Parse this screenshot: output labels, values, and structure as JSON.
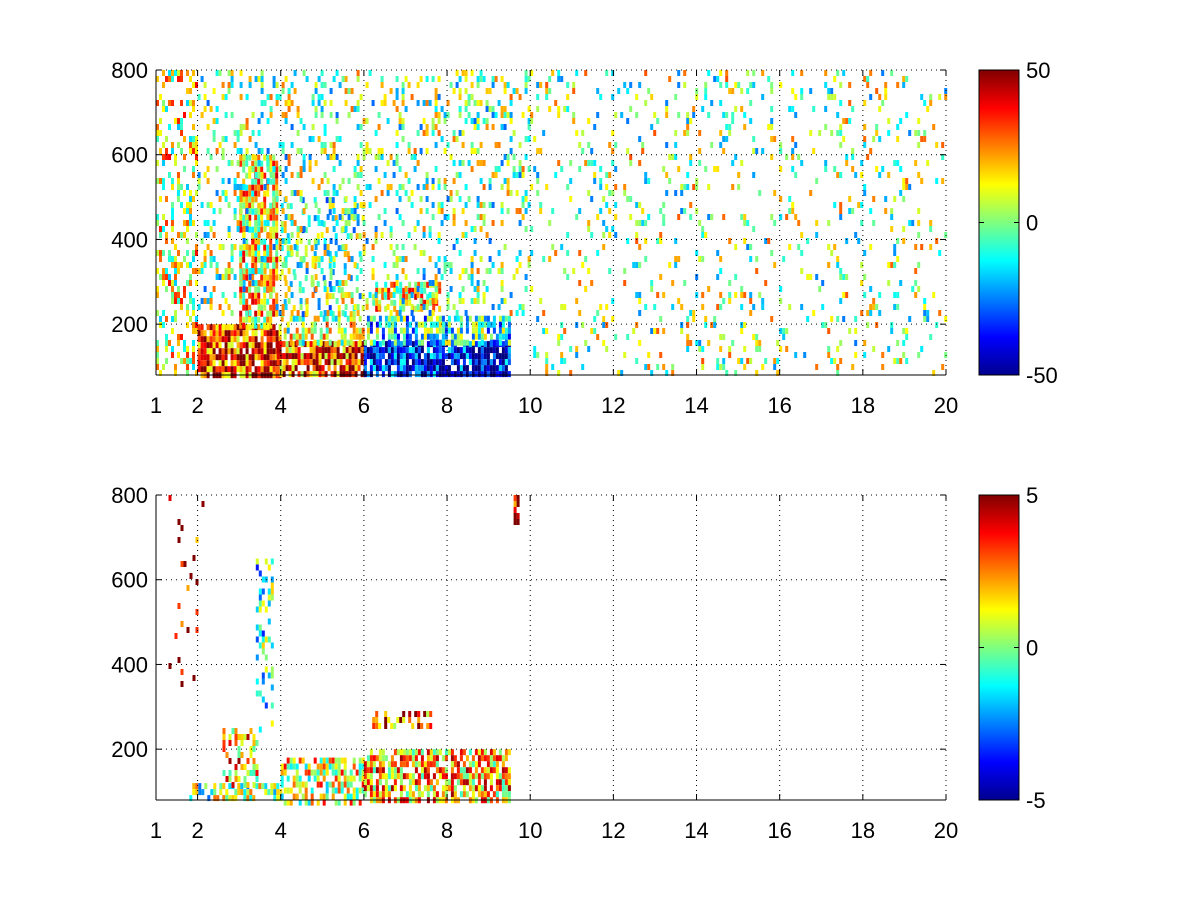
{
  "chart_data": [
    {
      "type": "heatmap",
      "title": "",
      "xlabel": "",
      "ylabel": "",
      "xlim": [
        1,
        20
      ],
      "ylim": [
        80,
        800
      ],
      "x_ticks": [
        1,
        2,
        4,
        6,
        8,
        10,
        12,
        14,
        16,
        18,
        20
      ],
      "y_ticks": [
        200,
        400,
        600,
        800
      ],
      "grid": true,
      "colormap": "jet",
      "colorbar": {
        "range": [
          -50,
          50
        ],
        "ticks": [
          "50",
          "0",
          "-50"
        ],
        "placement": "right"
      },
      "regions": [
        {
          "x": [
            1.0,
            2.0
          ],
          "y": [
            80,
            800
          ],
          "value": 10,
          "density": 0.35,
          "note_x": ""
        },
        {
          "x": [
            2.0,
            4.0
          ],
          "y": [
            80,
            200
          ],
          "value": 35,
          "density": 0.9
        },
        {
          "x": [
            3.0,
            3.9
          ],
          "y": [
            200,
            600
          ],
          "value": 15,
          "density": 0.75
        },
        {
          "x": [
            3.9,
            6.0
          ],
          "y": [
            80,
            160
          ],
          "value": 30,
          "density": 0.85
        },
        {
          "x": [
            4.0,
            6.0
          ],
          "y": [
            160,
            220
          ],
          "value": 5,
          "density": 0.6
        },
        {
          "x": [
            4.0,
            6.0
          ],
          "y": [
            220,
            500
          ],
          "value": -5,
          "density": 0.2
        },
        {
          "x": [
            6.0,
            9.5
          ],
          "y": [
            80,
            160
          ],
          "value": -40,
          "density": 0.9
        },
        {
          "x": [
            6.0,
            9.5
          ],
          "y": [
            160,
            220
          ],
          "value": -10,
          "density": 0.7
        },
        {
          "x": [
            6.2,
            7.8
          ],
          "y": [
            240,
            300
          ],
          "value": 15,
          "density": 0.6
        },
        {
          "x": [
            2.0,
            10.0
          ],
          "y": [
            220,
            800
          ],
          "value": 0,
          "density": 0.22
        },
        {
          "x": [
            10.0,
            20.0
          ],
          "y": [
            80,
            800
          ],
          "value": 2,
          "density": 0.12
        }
      ]
    },
    {
      "type": "heatmap",
      "title": "",
      "xlabel": "",
      "ylabel": "",
      "xlim": [
        1,
        20
      ],
      "ylim": [
        80,
        800
      ],
      "x_ticks": [
        1,
        2,
        4,
        6,
        8,
        10,
        12,
        14,
        16,
        18,
        20
      ],
      "y_ticks": [
        200,
        400,
        600,
        800
      ],
      "grid": true,
      "colormap": "jet",
      "colorbar": {
        "range": [
          -5,
          5
        ],
        "ticks": [
          "5",
          "0",
          "-5"
        ],
        "placement": "right"
      },
      "regions": [
        {
          "x": [
            1.8,
            4.0
          ],
          "y": [
            80,
            120
          ],
          "value": 0,
          "density": 0.6
        },
        {
          "x": [
            2.6,
            3.4
          ],
          "y": [
            120,
            250
          ],
          "value": 2,
          "density": 0.45
        },
        {
          "x": [
            3.4,
            3.8
          ],
          "y": [
            250,
            650
          ],
          "value": -1,
          "density": 0.35
        },
        {
          "x": [
            4.0,
            6.0
          ],
          "y": [
            80,
            180
          ],
          "value": 1,
          "density": 0.65
        },
        {
          "x": [
            6.0,
            9.5
          ],
          "y": [
            80,
            200
          ],
          "value": 2,
          "density": 0.7
        },
        {
          "x": [
            6.2,
            7.6
          ],
          "y": [
            255,
            290
          ],
          "value": 3,
          "density": 0.6
        },
        {
          "x": [
            1.3,
            2.2
          ],
          "y": [
            350,
            800
          ],
          "value": 4,
          "density": 0.05
        },
        {
          "x": [
            9.6,
            9.7
          ],
          "y": [
            740,
            800
          ],
          "value": 4,
          "density": 0.9
        }
      ]
    }
  ]
}
